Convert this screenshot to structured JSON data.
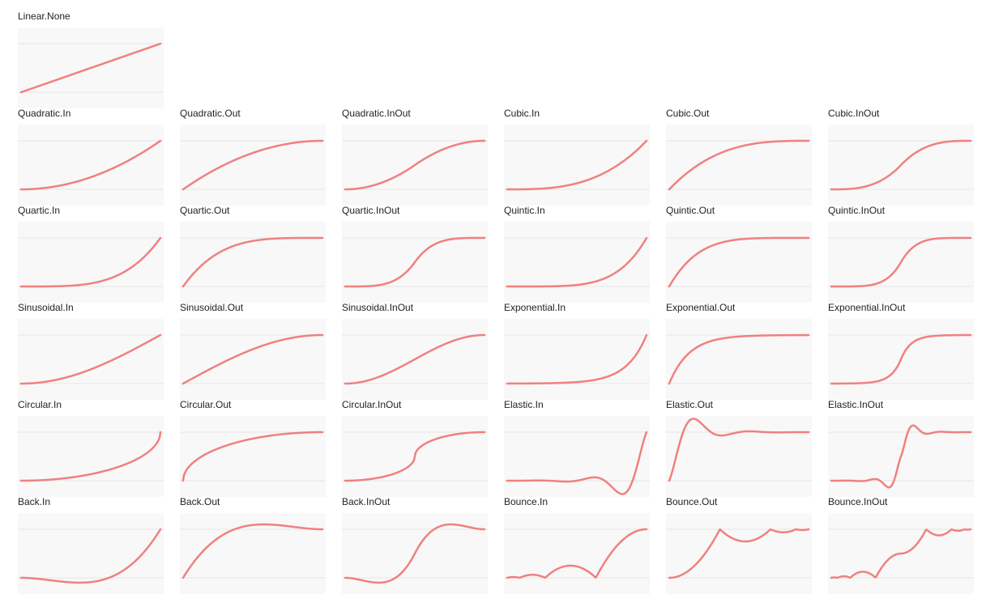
{
  "colors": {
    "curve": "#f08080",
    "plot_background": "#f8f8f8",
    "reference_line": "#e6e6e6",
    "title_text": "#222222"
  },
  "chart_data": [
    {
      "type": "line",
      "title": "Linear.None"
    },
    {
      "type": "line",
      "title": "Quadratic.In"
    },
    {
      "type": "line",
      "title": "Quadratic.Out"
    },
    {
      "type": "line",
      "title": "Quadratic.InOut"
    },
    {
      "type": "line",
      "title": "Cubic.In"
    },
    {
      "type": "line",
      "title": "Cubic.Out"
    },
    {
      "type": "line",
      "title": "Cubic.InOut"
    },
    {
      "type": "line",
      "title": "Quartic.In"
    },
    {
      "type": "line",
      "title": "Quartic.Out"
    },
    {
      "type": "line",
      "title": "Quartic.InOut"
    },
    {
      "type": "line",
      "title": "Quintic.In"
    },
    {
      "type": "line",
      "title": "Quintic.Out"
    },
    {
      "type": "line",
      "title": "Quintic.InOut"
    },
    {
      "type": "line",
      "title": "Sinusoidal.In"
    },
    {
      "type": "line",
      "title": "Sinusoidal.Out"
    },
    {
      "type": "line",
      "title": "Sinusoidal.InOut"
    },
    {
      "type": "line",
      "title": "Exponential.In"
    },
    {
      "type": "line",
      "title": "Exponential.Out"
    },
    {
      "type": "line",
      "title": "Exponential.InOut"
    },
    {
      "type": "line",
      "title": "Circular.In"
    },
    {
      "type": "line",
      "title": "Circular.Out"
    },
    {
      "type": "line",
      "title": "Circular.InOut"
    },
    {
      "type": "line",
      "title": "Elastic.In"
    },
    {
      "type": "line",
      "title": "Elastic.Out"
    },
    {
      "type": "line",
      "title": "Elastic.InOut"
    },
    {
      "type": "line",
      "title": "Back.In"
    },
    {
      "type": "line",
      "title": "Back.Out"
    },
    {
      "type": "line",
      "title": "Back.InOut"
    },
    {
      "type": "line",
      "title": "Bounce.In"
    },
    {
      "type": "line",
      "title": "Bounce.Out"
    },
    {
      "type": "line",
      "title": "Bounce.InOut"
    }
  ]
}
